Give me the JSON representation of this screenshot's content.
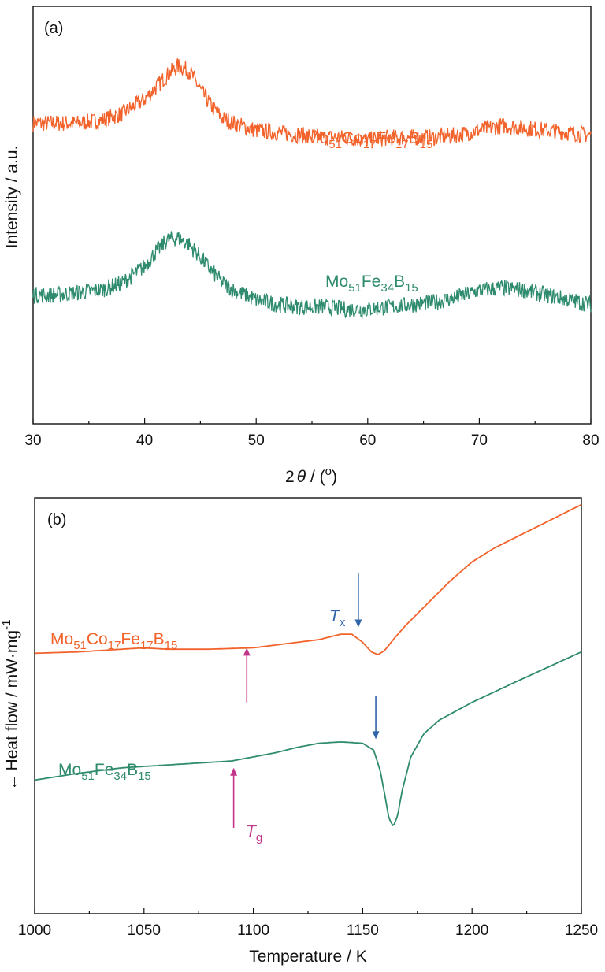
{
  "chart_data": [
    {
      "panel": "(a)",
      "type": "line",
      "xlabel_main": "2",
      "xlabel_italic": "θ",
      "xlabel_rest": " / (",
      "xlabel_sup": "o",
      "xlabel_end": ")",
      "ylabel": "Intensity / a.u.",
      "xlim": [
        30,
        80
      ],
      "x_ticks": [
        "30",
        "40",
        "50",
        "60",
        "70",
        "80"
      ],
      "grid": false,
      "series": [
        {
          "label_parts": [
            [
              "Mo",
              false
            ],
            [
              "51",
              true
            ],
            [
              "Co",
              false
            ],
            [
              "17",
              true
            ],
            [
              "Fe",
              false
            ],
            [
              "17",
              true
            ],
            [
              "B",
              false
            ],
            [
              "15",
              true
            ]
          ],
          "color": "#f2622a",
          "x": [
            30,
            32,
            34,
            36,
            38,
            40,
            41,
            42,
            43,
            44,
            45,
            46,
            47,
            48,
            50,
            52,
            54,
            56,
            58,
            60,
            62,
            64,
            66,
            68,
            70,
            72,
            74,
            76,
            78,
            80
          ],
          "y": [
            0.36,
            0.36,
            0.36,
            0.37,
            0.4,
            0.46,
            0.51,
            0.56,
            0.6,
            0.58,
            0.5,
            0.43,
            0.38,
            0.36,
            0.33,
            0.32,
            0.31,
            0.3,
            0.3,
            0.29,
            0.3,
            0.3,
            0.3,
            0.31,
            0.33,
            0.35,
            0.34,
            0.33,
            0.32,
            0.31
          ],
          "noise": 0.035
        },
        {
          "label_parts": [
            [
              "Mo",
              false
            ],
            [
              "51",
              true
            ],
            [
              "Fe",
              false
            ],
            [
              "34",
              true
            ],
            [
              "B",
              false
            ],
            [
              "15",
              true
            ]
          ],
          "color": "#2e8b6e",
          "x": [
            30,
            32,
            34,
            36,
            38,
            40,
            41,
            42,
            43,
            44,
            45,
            46,
            47,
            48,
            50,
            52,
            54,
            56,
            58,
            60,
            62,
            64,
            66,
            68,
            70,
            72,
            74,
            76,
            78,
            80
          ],
          "y": [
            -0.36,
            -0.36,
            -0.35,
            -0.34,
            -0.31,
            -0.24,
            -0.18,
            -0.13,
            -0.12,
            -0.15,
            -0.2,
            -0.26,
            -0.31,
            -0.34,
            -0.38,
            -0.4,
            -0.41,
            -0.41,
            -0.42,
            -0.42,
            -0.41,
            -0.4,
            -0.39,
            -0.37,
            -0.34,
            -0.33,
            -0.34,
            -0.36,
            -0.38,
            -0.4
          ],
          "noise": 0.035
        }
      ],
      "ylim": [
        -0.9,
        0.85
      ]
    },
    {
      "panel": "(b)",
      "type": "line",
      "xlabel": "Temperature / K",
      "ylabel_arrow": "←",
      "ylabel": "Heat flow / mW·mg",
      "ylabel_sup": "-1",
      "xlim": [
        1000,
        1250
      ],
      "x_ticks": [
        "1000",
        "1050",
        "1100",
        "1150",
        "1200",
        "1250"
      ],
      "grid": false,
      "ylim": [
        -1.6,
        1.45
      ],
      "series": [
        {
          "label_parts": [
            [
              "Mo",
              false
            ],
            [
              "51",
              true
            ],
            [
              "Co",
              false
            ],
            [
              "17",
              true
            ],
            [
              "Fe",
              false
            ],
            [
              "17",
              true
            ],
            [
              "B",
              false
            ],
            [
              "15",
              true
            ]
          ],
          "color": "#f2622a",
          "x": [
            1000,
            1020,
            1040,
            1050,
            1060,
            1080,
            1100,
            1110,
            1120,
            1130,
            1140,
            1145,
            1150,
            1154,
            1157,
            1160,
            1165,
            1170,
            1180,
            1190,
            1200,
            1210,
            1220,
            1230,
            1240,
            1250
          ],
          "y": [
            0.31,
            0.32,
            0.34,
            0.35,
            0.34,
            0.34,
            0.35,
            0.37,
            0.39,
            0.41,
            0.45,
            0.45,
            0.39,
            0.32,
            0.3,
            0.33,
            0.43,
            0.52,
            0.68,
            0.84,
            0.98,
            1.08,
            1.16,
            1.24,
            1.32,
            1.4
          ]
        },
        {
          "label_parts": [
            [
              "Mo",
              false
            ],
            [
              "51",
              true
            ],
            [
              "Fe",
              false
            ],
            [
              "34",
              true
            ],
            [
              "B",
              false
            ],
            [
              "15",
              true
            ]
          ],
          "color": "#2e8b6e",
          "x": [
            1000,
            1020,
            1040,
            1060,
            1080,
            1090,
            1100,
            1110,
            1120,
            1130,
            1140,
            1150,
            1155,
            1158,
            1160,
            1162,
            1164,
            1166,
            1168,
            1172,
            1178,
            1185,
            1200,
            1220,
            1235,
            1250
          ],
          "y": [
            -0.62,
            -0.57,
            -0.53,
            -0.51,
            -0.49,
            -0.48,
            -0.45,
            -0.42,
            -0.38,
            -0.35,
            -0.34,
            -0.35,
            -0.4,
            -0.55,
            -0.72,
            -0.9,
            -0.96,
            -0.88,
            -0.7,
            -0.45,
            -0.28,
            -0.18,
            -0.05,
            0.1,
            0.21,
            0.32
          ]
        }
      ],
      "annotations": {
        "tx_label": "T",
        "tx_sub": "x",
        "tg_label": "T",
        "tg_sub": "g",
        "tx_color": "#2f64a8",
        "tg_color": "#c2358a",
        "tx_arrows": [
          {
            "x": 1148,
            "y_from": 0.9,
            "y_to": 0.5
          },
          {
            "x": 1156,
            "y_from": 0.0,
            "y_to": -0.32
          }
        ],
        "tg_arrows": [
          {
            "x": 1097,
            "y_from": -0.05,
            "y_to": 0.35
          },
          {
            "x": 1091,
            "y_from": -0.97,
            "y_to": -0.53
          }
        ]
      }
    }
  ]
}
